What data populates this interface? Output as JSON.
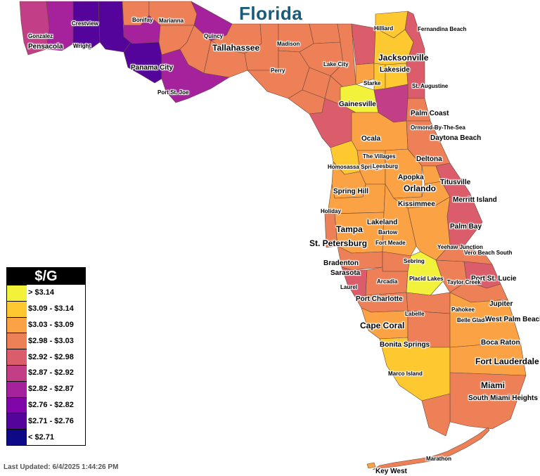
{
  "title": "Florida",
  "legend": {
    "header": "$/G",
    "bins": [
      {
        "label": "> $3.14",
        "color": "#f2f23a"
      },
      {
        "label": "$3.09 - $3.14",
        "color": "#fdc830"
      },
      {
        "label": "$3.03 - $3.09",
        "color": "#fba244"
      },
      {
        "label": "$2.98 - $3.03",
        "color": "#ee8058"
      },
      {
        "label": "$2.92 - $2.98",
        "color": "#db5c6b"
      },
      {
        "label": "$2.87 - $2.92",
        "color": "#c23f87"
      },
      {
        "label": "$2.82 - $2.87",
        "color": "#a5229c"
      },
      {
        "label": "$2.76 - $2.82",
        "color": "#8106a9"
      },
      {
        "label": "$2.71 - $2.76",
        "color": "#55049b"
      },
      {
        "label": "< $2.71",
        "color": "#0e0a87"
      }
    ]
  },
  "last_updated": "Last Updated: 6/4/2025 1:44:26 PM",
  "cities": [
    {
      "key": "gonzalez",
      "label": "Gonzalez"
    },
    {
      "key": "pensacola",
      "label": "Pensacola"
    },
    {
      "key": "crestview",
      "label": "Crestview"
    },
    {
      "key": "wright",
      "label": "Wright"
    },
    {
      "key": "bonifay",
      "label": "Bonifay"
    },
    {
      "key": "marianna",
      "label": "Marianna"
    },
    {
      "key": "quincy",
      "label": "Quincy"
    },
    {
      "key": "tallahassee",
      "label": "Tallahassee"
    },
    {
      "key": "madison",
      "label": "Madison"
    },
    {
      "key": "panama_city",
      "label": "Panama City"
    },
    {
      "key": "perry",
      "label": "Perry"
    },
    {
      "key": "lake_city",
      "label": "Lake City"
    },
    {
      "key": "port_st_joe",
      "label": "Port St. Joe"
    },
    {
      "key": "hilliard",
      "label": "Hilliard"
    },
    {
      "key": "fernandina_beach",
      "label": "Fernandina Beach"
    },
    {
      "key": "jacksonville",
      "label": "Jacksonville"
    },
    {
      "key": "lakeside",
      "label": "Lakeside"
    },
    {
      "key": "starke",
      "label": "Starke"
    },
    {
      "key": "st_augustine",
      "label": "St. Augustine"
    },
    {
      "key": "gainesville",
      "label": "Gainesville"
    },
    {
      "key": "palm_coast",
      "label": "Palm Coast"
    },
    {
      "key": "ormond",
      "label": "Ormond-By-The-Sea"
    },
    {
      "key": "ocala",
      "label": "Ocala"
    },
    {
      "key": "daytona_beach",
      "label": "Daytona Beach"
    },
    {
      "key": "the_villages",
      "label": "The Villages"
    },
    {
      "key": "deltona",
      "label": "Deltona"
    },
    {
      "key": "homosassa",
      "label": "Homosassa Springs"
    },
    {
      "key": "leesburg",
      "label": "Leesburg"
    },
    {
      "key": "apopka",
      "label": "Apopka"
    },
    {
      "key": "orlando",
      "label": "Orlando"
    },
    {
      "key": "titusville",
      "label": "Titusville"
    },
    {
      "key": "spring_hill",
      "label": "Spring Hill"
    },
    {
      "key": "merritt_island",
      "label": "Merritt Island"
    },
    {
      "key": "kissimmee",
      "label": "Kissimmee"
    },
    {
      "key": "holiday",
      "label": "Holiday"
    },
    {
      "key": "lakeland",
      "label": "Lakeland"
    },
    {
      "key": "tampa",
      "label": "Tampa"
    },
    {
      "key": "palm_bay",
      "label": "Palm Bay"
    },
    {
      "key": "bartow",
      "label": "Bartow"
    },
    {
      "key": "st_petersburg",
      "label": "St. Petersburg"
    },
    {
      "key": "fort_meade",
      "label": "Fort Meade"
    },
    {
      "key": "yeehaw",
      "label": "Yeehaw Junction"
    },
    {
      "key": "vero_beach_south",
      "label": "Vero Beach South"
    },
    {
      "key": "sebring",
      "label": "Sebring"
    },
    {
      "key": "bradenton",
      "label": "Bradenton"
    },
    {
      "key": "sarasota",
      "label": "Sarasota"
    },
    {
      "key": "placid_lakes",
      "label": "Placid Lakes"
    },
    {
      "key": "port_st_lucie",
      "label": "Port St. Lucie"
    },
    {
      "key": "arcadia",
      "label": "Arcadia"
    },
    {
      "key": "laurel",
      "label": "Laurel"
    },
    {
      "key": "taylor_creek",
      "label": "Taylor Creek"
    },
    {
      "key": "port_charlotte",
      "label": "Port Charlotte"
    },
    {
      "key": "jupiter",
      "label": "Jupiter"
    },
    {
      "key": "pahokee",
      "label": "Pahokee"
    },
    {
      "key": "labelle",
      "label": "Labelle"
    },
    {
      "key": "belle_glade",
      "label": "Belle Glade"
    },
    {
      "key": "west_palm_beach",
      "label": "West Palm Beach"
    },
    {
      "key": "cape_coral",
      "label": "Cape Coral"
    },
    {
      "key": "boca_raton",
      "label": "Boca Raton"
    },
    {
      "key": "bonita_springs",
      "label": "Bonita Springs"
    },
    {
      "key": "fort_lauderdale",
      "label": "Fort Lauderdale"
    },
    {
      "key": "marco_island",
      "label": "Marco Island"
    },
    {
      "key": "miami",
      "label": "Miami"
    },
    {
      "key": "south_miami_heights",
      "label": "South Miami Heights"
    },
    {
      "key": "marathon",
      "label": "Marathon"
    },
    {
      "key": "key_west",
      "label": "Key West"
    }
  ]
}
